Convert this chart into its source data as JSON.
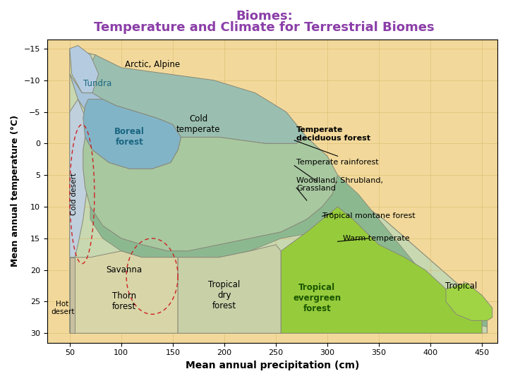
{
  "title_line1": "Biomes:",
  "title_line2": "Temperature and Climate for Terrestrial Biomes",
  "title_color": "#8B3FA8",
  "xlabel": "Mean annual precipitation (cm)",
  "ylabel": "Mean annual temperature (°C)",
  "xlim": [
    28,
    465
  ],
  "ylim": [
    31.5,
    -16.5
  ],
  "xticks": [
    50,
    100,
    150,
    200,
    250,
    300,
    350,
    400,
    450
  ],
  "yticks": [
    -15,
    -10,
    -5,
    0,
    5,
    10,
    15,
    20,
    25,
    30
  ],
  "bg_color": "#F2D99B",
  "grid_color": "#D9B96E",
  "biome_label_color": "#000000",
  "boreal_label_color": "#1A6680",
  "tundra_label_color": "#1A6680",
  "trop_ever_label_color": "#1A6680",
  "colors": {
    "arctic_alpine": "#B5CCE0",
    "tundra": "#A8C4DA",
    "cold_desert": "#C0D0DC",
    "boreal_forest": "#82B4C8",
    "cold_temperate": "#9ABFB0",
    "temperate_green": "#A8C8A0",
    "warm_green": "#8CB890",
    "savanna_thorn": "#D8D5A8",
    "hot_desert": "#C8C0A0",
    "tropical_dry": "#C8D0A8",
    "tropical_evergreen": "#8AC830",
    "tropical": "#8AC830"
  }
}
